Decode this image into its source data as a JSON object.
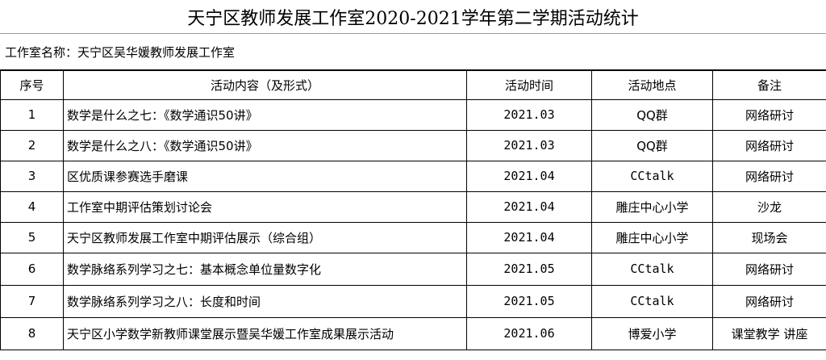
{
  "title": "天宁区教师发展工作室2020-2021学年第二学期活动统计",
  "studio_label": "工作室名称：天宁区吴华媛教师发展工作室",
  "headers": {
    "no": "序号",
    "content": "活动内容（及形式）",
    "time": "活动时间",
    "place": "活动地点",
    "note": "备注"
  },
  "rows": [
    {
      "no": "1",
      "content": "数学是什么之七：《数学通识50讲》",
      "time": "2021.03",
      "place": "QQ群",
      "note": "网络研讨"
    },
    {
      "no": "2",
      "content": "数学是什么之八：《数学通识50讲》",
      "time": "2021.03",
      "place": "QQ群",
      "note": "网络研讨"
    },
    {
      "no": "3",
      "content": "区优质课参赛选手磨课",
      "time": "2021.04",
      "place": "CCtalk",
      "note": "网络研讨"
    },
    {
      "no": "4",
      "content": "工作室中期评估策划讨论会",
      "time": "2021.04",
      "place": "雕庄中心小学",
      "note": "沙龙"
    },
    {
      "no": "5",
      "content": "天宁区教师发展工作室中期评估展示（综合组）",
      "time": "2021.04",
      "place": "雕庄中心小学",
      "note": "现场会"
    },
    {
      "no": "6",
      "content": "数学脉络系列学习之七：基本概念单位量数字化",
      "time": "2021.05",
      "place": "CCtalk",
      "note": "网络研讨"
    },
    {
      "no": "7",
      "content": "数学脉络系列学习之八：长度和时间",
      "time": "2021.05",
      "place": "CCtalk",
      "note": "网络研讨"
    },
    {
      "no": "8",
      "content": "天宁区小学数学新教师课堂展示暨吴华媛工作室成果展示活动",
      "time": "2021.06",
      "place": "博爱小学",
      "note": "课堂教学 讲座"
    }
  ]
}
